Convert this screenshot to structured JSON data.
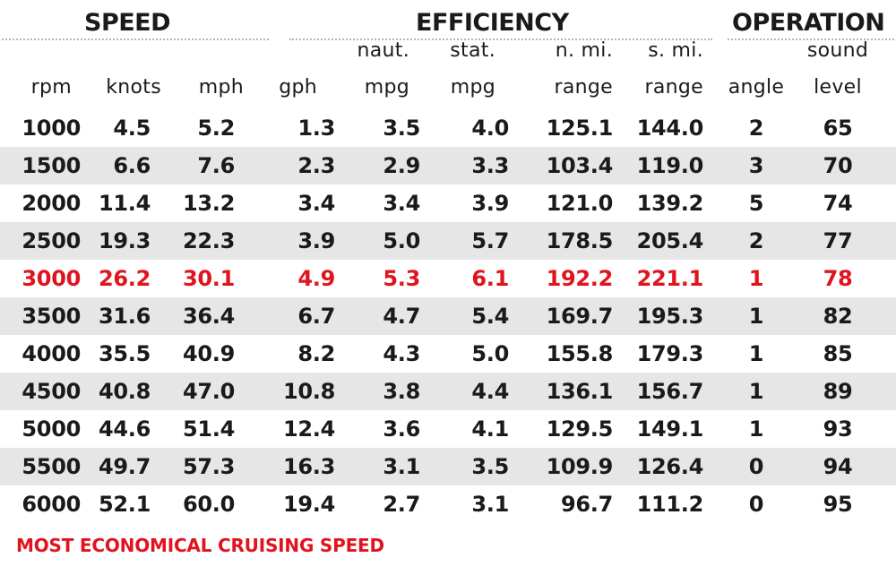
{
  "groups": {
    "speed": "SPEED",
    "efficiency": "EFFICIENCY",
    "operation": "OPERATION"
  },
  "headers": {
    "rpm": [
      "",
      "rpm"
    ],
    "knots": [
      "",
      "knots"
    ],
    "mph": [
      "",
      "mph"
    ],
    "gph": [
      "",
      "gph"
    ],
    "naut_mpg": [
      "naut.",
      "mpg"
    ],
    "stat_mpg": [
      "stat.",
      "mpg"
    ],
    "n_range": [
      "n. mi.",
      "range"
    ],
    "s_range": [
      "s. mi.",
      "range"
    ],
    "angle": [
      "",
      "angle"
    ],
    "sound": [
      "sound",
      "level"
    ]
  },
  "rows": [
    [
      "1000",
      "4.5",
      "5.2",
      "1.3",
      "3.5",
      "4.0",
      "125.1",
      "144.0",
      "2",
      "65"
    ],
    [
      "1500",
      "6.6",
      "7.6",
      "2.3",
      "2.9",
      "3.3",
      "103.4",
      "119.0",
      "3",
      "70"
    ],
    [
      "2000",
      "11.4",
      "13.2",
      "3.4",
      "3.4",
      "3.9",
      "121.0",
      "139.2",
      "5",
      "74"
    ],
    [
      "2500",
      "19.3",
      "22.3",
      "3.9",
      "5.0",
      "5.7",
      "178.5",
      "205.4",
      "2",
      "77"
    ],
    [
      "3000",
      "26.2",
      "30.1",
      "4.9",
      "5.3",
      "6.1",
      "192.2",
      "221.1",
      "1",
      "78"
    ],
    [
      "3500",
      "31.6",
      "36.4",
      "6.7",
      "4.7",
      "5.4",
      "169.7",
      "195.3",
      "1",
      "82"
    ],
    [
      "4000",
      "35.5",
      "40.9",
      "8.2",
      "4.3",
      "5.0",
      "155.8",
      "179.3",
      "1",
      "85"
    ],
    [
      "4500",
      "40.8",
      "47.0",
      "10.8",
      "3.8",
      "4.4",
      "136.1",
      "156.7",
      "1",
      "89"
    ],
    [
      "5000",
      "44.6",
      "51.4",
      "12.4",
      "3.6",
      "4.1",
      "129.5",
      "149.1",
      "1",
      "93"
    ],
    [
      "5500",
      "49.7",
      "57.3",
      "16.3",
      "3.1",
      "3.5",
      "109.9",
      "126.4",
      "0",
      "94"
    ],
    [
      "6000",
      "52.1",
      "60.0",
      "19.4",
      "2.7",
      "3.1",
      "96.7",
      "111.2",
      "0",
      "95"
    ]
  ],
  "highlight_row": 4,
  "highlight_color": "#e0141e",
  "shade_color": "#e6e6e6",
  "footnote": "MOST ECONOMICAL CRUISING SPEED"
}
